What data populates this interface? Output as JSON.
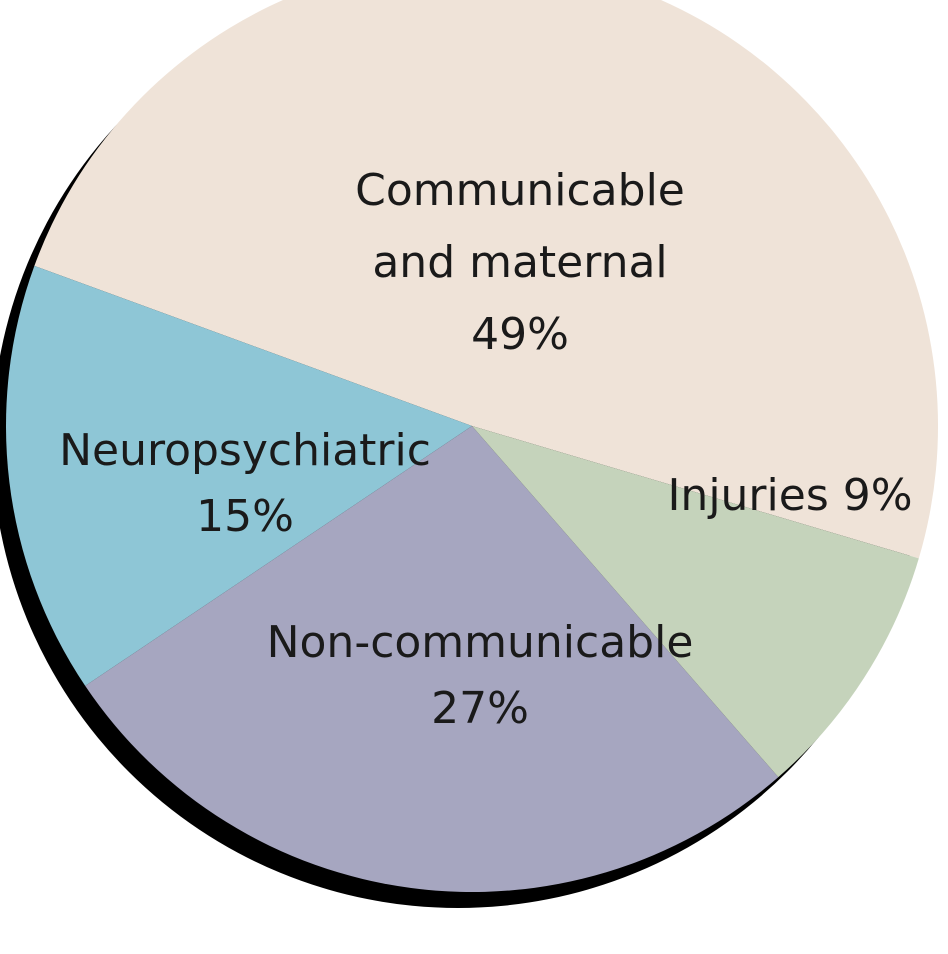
{
  "chart_data": {
    "type": "pie",
    "title": "",
    "start_angle_deg": 343.5,
    "direction": "counterclockwise",
    "slices": [
      {
        "label_lines": [
          "Communicable",
          "and maternal",
          "49%"
        ],
        "value": 49,
        "color": "#efe3d8"
      },
      {
        "label_lines": [
          "Neuropsychiatric",
          "15%"
        ],
        "value": 15,
        "color": "#8ec6d6"
      },
      {
        "label_lines": [
          "Non-communicable",
          "27%"
        ],
        "value": 27,
        "color": "#a6a6c0"
      },
      {
        "label_lines": [
          "Injuries 9%"
        ],
        "value": 9,
        "color": "#c5d3bb"
      }
    ],
    "shadow_color": "#000000",
    "legend": "none"
  }
}
